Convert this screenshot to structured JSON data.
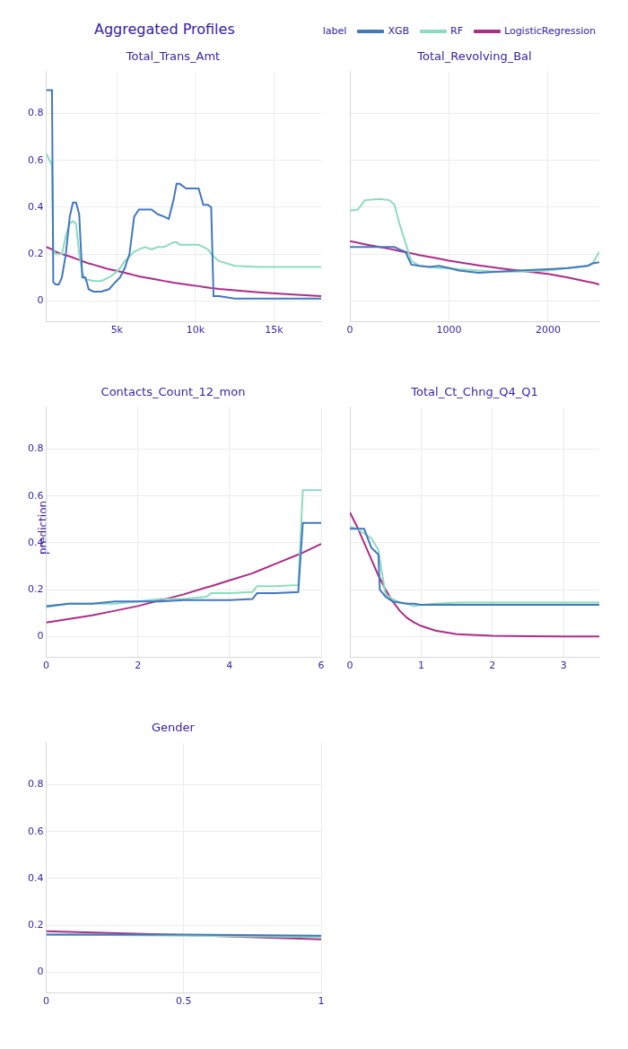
{
  "title": "Aggregated Profiles",
  "legend_title": "label",
  "y_label": "prediction",
  "legend": "top-right",
  "chart_data": [
    {
      "type": "line",
      "title": "Total_Trans_Amt",
      "grid": true,
      "tick_labels": true,
      "x": [
        500,
        870,
        950,
        1100,
        1300,
        1500,
        1750,
        2000,
        2200,
        2400,
        2600,
        2800,
        3000,
        3200,
        3500,
        4000,
        4500,
        4900,
        5200,
        5500,
        5800,
        6100,
        6400,
        6800,
        7200,
        7600,
        8000,
        8300,
        8600,
        8800,
        9000,
        9400,
        9800,
        10200,
        10500,
        10800,
        11000,
        11150,
        11500,
        12500,
        14000,
        16000,
        18000
      ],
      "xlim": [
        500,
        18000
      ],
      "xticks": [
        {
          "value": 5000,
          "label": "5k"
        },
        {
          "value": 10000,
          "label": "10k"
        },
        {
          "value": 15000,
          "label": "15k"
        }
      ],
      "ylim": [
        -0.09,
        0.98
      ],
      "yticks": [
        0,
        0.2,
        0.4,
        0.6,
        0.8
      ],
      "series": [
        {
          "name": "XGB",
          "color": "#4378bf",
          "values": [
            0.9,
            0.9,
            0.08,
            0.07,
            0.07,
            0.1,
            0.2,
            0.36,
            0.42,
            0.42,
            0.37,
            0.1,
            0.1,
            0.05,
            0.04,
            0.04,
            0.05,
            0.08,
            0.1,
            0.14,
            0.2,
            0.36,
            0.39,
            0.39,
            0.39,
            0.37,
            0.36,
            0.35,
            0.43,
            0.5,
            0.5,
            0.48,
            0.48,
            0.48,
            0.41,
            0.41,
            0.4,
            0.02,
            0.02,
            0.01,
            0.01,
            0.01,
            0.01
          ]
        },
        {
          "name": "RF",
          "color": "#8bdcbe",
          "values": [
            0.63,
            0.58,
            0.22,
            0.2,
            0.2,
            0.2,
            0.28,
            0.33,
            0.34,
            0.33,
            0.2,
            0.12,
            0.09,
            0.09,
            0.085,
            0.085,
            0.1,
            0.12,
            0.14,
            0.17,
            0.19,
            0.21,
            0.22,
            0.23,
            0.22,
            0.23,
            0.23,
            0.24,
            0.25,
            0.25,
            0.24,
            0.24,
            0.24,
            0.24,
            0.23,
            0.22,
            0.2,
            0.19,
            0.17,
            0.15,
            0.145,
            0.145,
            0.145
          ]
        },
        {
          "name": "LogisticRegression",
          "color": "#ae2c87",
          "values": [
            0.23,
            0.22,
            0.215,
            0.21,
            0.205,
            0.2,
            0.195,
            0.19,
            0.185,
            0.18,
            0.175,
            0.17,
            0.165,
            0.16,
            0.155,
            0.145,
            0.135,
            0.13,
            0.125,
            0.12,
            0.115,
            0.11,
            0.105,
            0.1,
            0.095,
            0.09,
            0.085,
            0.082,
            0.078,
            0.076,
            0.074,
            0.07,
            0.066,
            0.063,
            0.06,
            0.057,
            0.055,
            0.054,
            0.051,
            0.045,
            0.037,
            0.028,
            0.02
          ]
        }
      ]
    },
    {
      "type": "line",
      "title": "Total_Revolving_Bal",
      "grid": true,
      "tick_labels": "x",
      "x": [
        0,
        80,
        150,
        300,
        400,
        450,
        500,
        560,
        620,
        700,
        800,
        900,
        1000,
        1100,
        1300,
        1500,
        1700,
        2000,
        2200,
        2400,
        2450,
        2517
      ],
      "xlim": [
        0,
        2517
      ],
      "xticks": [
        0,
        1000,
        2000
      ],
      "ylim": [
        -0.09,
        0.98
      ],
      "yticks": [
        0,
        0.2,
        0.4,
        0.6,
        0.8
      ],
      "series": [
        {
          "name": "XGB",
          "color": "#4378bf",
          "values": [
            0.23,
            0.23,
            0.23,
            0.23,
            0.23,
            0.23,
            0.22,
            0.21,
            0.155,
            0.15,
            0.145,
            0.15,
            0.14,
            0.13,
            0.12,
            0.125,
            0.13,
            0.135,
            0.14,
            0.15,
            0.16,
            0.165
          ]
        },
        {
          "name": "RF",
          "color": "#8bdcbe",
          "values": [
            0.385,
            0.39,
            0.43,
            0.435,
            0.43,
            0.41,
            0.33,
            0.25,
            0.17,
            0.15,
            0.145,
            0.14,
            0.14,
            0.135,
            0.13,
            0.125,
            0.125,
            0.13,
            0.14,
            0.15,
            0.16,
            0.21
          ]
        },
        {
          "name": "LogisticRegression",
          "color": "#ae2c87",
          "values": [
            0.255,
            0.248,
            0.242,
            0.23,
            0.222,
            0.218,
            0.213,
            0.208,
            0.203,
            0.196,
            0.188,
            0.18,
            0.172,
            0.165,
            0.152,
            0.14,
            0.13,
            0.115,
            0.1,
            0.082,
            0.078,
            0.07
          ]
        }
      ]
    },
    {
      "type": "line",
      "title": "Contacts_Count_12_mon",
      "grid": true,
      "tick_labels": true,
      "x": [
        0,
        0.5,
        1,
        1.5,
        2,
        2.5,
        3,
        3.5,
        3.6,
        4,
        4.5,
        4.6,
        5,
        5.5,
        5.6,
        6
      ],
      "xlim": [
        0,
        6
      ],
      "xticks": [
        0,
        2,
        4,
        6
      ],
      "ylim": [
        -0.09,
        0.98
      ],
      "yticks": [
        0,
        0.2,
        0.4,
        0.6,
        0.8
      ],
      "series": [
        {
          "name": "XGB",
          "color": "#4378bf",
          "values": [
            0.13,
            0.14,
            0.14,
            0.15,
            0.15,
            0.15,
            0.155,
            0.155,
            0.155,
            0.155,
            0.16,
            0.185,
            0.185,
            0.19,
            0.485,
            0.485
          ]
        },
        {
          "name": "RF",
          "color": "#8bdcbe",
          "values": [
            0.125,
            0.14,
            0.14,
            0.14,
            0.15,
            0.16,
            0.16,
            0.17,
            0.185,
            0.185,
            0.19,
            0.215,
            0.215,
            0.22,
            0.625,
            0.625
          ]
        },
        {
          "name": "LogisticRegression",
          "color": "#ae2c87",
          "values": [
            0.06,
            0.075,
            0.09,
            0.11,
            0.13,
            0.155,
            0.18,
            0.21,
            0.215,
            0.24,
            0.27,
            0.278,
            0.31,
            0.35,
            0.358,
            0.395
          ]
        }
      ]
    },
    {
      "type": "line",
      "title": "Total_Ct_Chng_Q4_Q1",
      "grid": true,
      "tick_labels": "x",
      "x": [
        0,
        0.1,
        0.2,
        0.3,
        0.4,
        0.42,
        0.5,
        0.6,
        0.7,
        0.8,
        0.9,
        1.0,
        1.2,
        1.5,
        2,
        2.5,
        3,
        3.5
      ],
      "xlim": [
        0,
        3.5
      ],
      "xticks": [
        0,
        1,
        2,
        3
      ],
      "ylim": [
        -0.09,
        0.98
      ],
      "yticks": [
        0,
        0.2,
        0.4,
        0.6,
        0.8
      ],
      "series": [
        {
          "name": "XGB",
          "color": "#4378bf",
          "values": [
            0.46,
            0.46,
            0.46,
            0.38,
            0.35,
            0.2,
            0.17,
            0.15,
            0.145,
            0.14,
            0.14,
            0.135,
            0.135,
            0.135,
            0.135,
            0.135,
            0.135,
            0.135
          ]
        },
        {
          "name": "RF",
          "color": "#8bdcbe",
          "values": [
            0.47,
            0.46,
            0.44,
            0.42,
            0.37,
            0.33,
            0.18,
            0.16,
            0.145,
            0.14,
            0.13,
            0.135,
            0.14,
            0.145,
            0.145,
            0.145,
            0.145,
            0.145
          ]
        },
        {
          "name": "LogisticRegression",
          "color": "#ae2c87",
          "values": [
            0.53,
            0.47,
            0.4,
            0.33,
            0.26,
            0.25,
            0.2,
            0.15,
            0.11,
            0.08,
            0.06,
            0.045,
            0.025,
            0.01,
            0.003,
            0.001,
            0,
            0
          ]
        }
      ]
    },
    {
      "type": "line",
      "title": "Gender",
      "grid": true,
      "tick_labels": true,
      "x": [
        0,
        0.5,
        1
      ],
      "xlim": [
        0,
        1
      ],
      "xticks": [
        0,
        0.5,
        1
      ],
      "ylim": [
        -0.09,
        0.98
      ],
      "yticks": [
        0,
        0.2,
        0.4,
        0.6,
        0.8
      ],
      "series": [
        {
          "name": "XGB",
          "color": "#4378bf",
          "values": [
            0.16,
            0.16,
            0.155
          ]
        },
        {
          "name": "RF",
          "color": "#8bdcbe",
          "values": [
            0.16,
            0.155,
            0.15
          ]
        },
        {
          "name": "LogisticRegression",
          "color": "#ae2c87",
          "values": [
            0.175,
            0.158,
            0.14
          ]
        }
      ]
    }
  ]
}
